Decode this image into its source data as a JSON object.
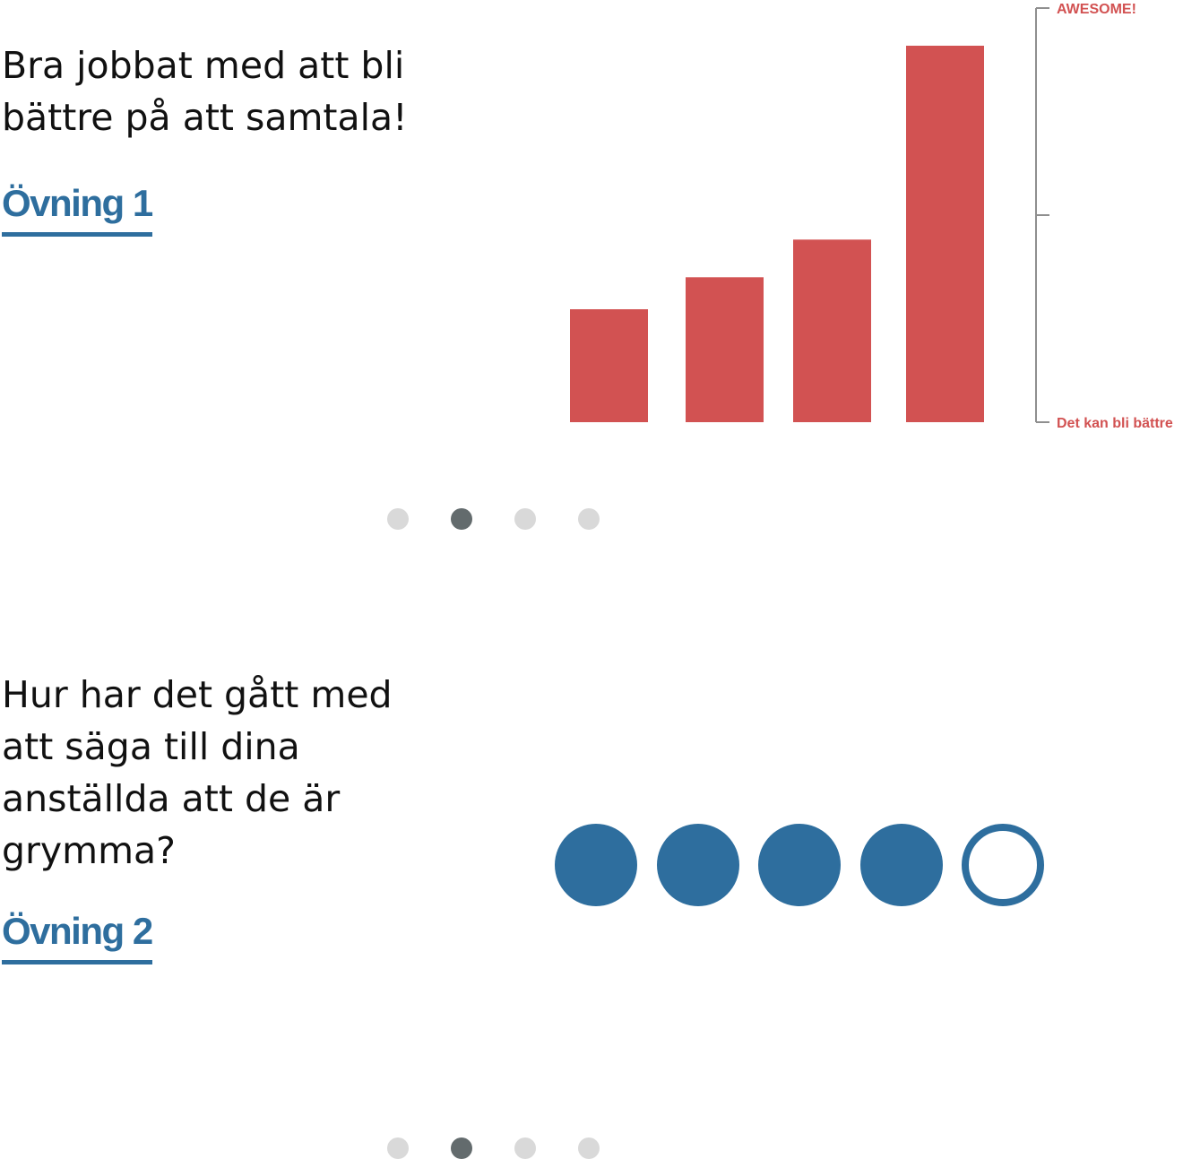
{
  "slides": [
    {
      "heading": "Bra jobbat med att bli\nbättre på att samtala!",
      "link_label": "Övning 1",
      "pagination": {
        "total": 4,
        "active_index": 1
      }
    },
    {
      "heading": "Hur har det gått med\natt säga till dina\nanställda att de är\ngrymma?",
      "link_label": "Övning 2",
      "pagination": {
        "total": 4,
        "active_index": 1
      }
    }
  ],
  "chart_data": {
    "type": "bar",
    "values": [
      30,
      38.5,
      48.5,
      100
    ],
    "ylim": [
      0,
      110
    ],
    "scale_top_label": "AWESOME!",
    "scale_bottom_label": "Det kan bli bättre",
    "bar_color": "#d25252",
    "axis_color": "#8f8f8f"
  },
  "rating": {
    "value": 4,
    "max": 5,
    "color": "#2e6e9e"
  },
  "colors": {
    "link": "#2e6e9e",
    "dot_inactive": "#d9d9d9",
    "dot_active": "#636b6d"
  }
}
